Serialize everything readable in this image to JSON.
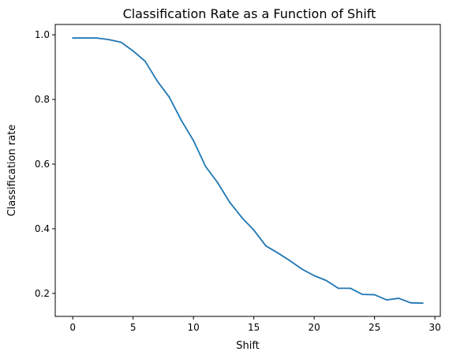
{
  "chart_data": {
    "type": "line",
    "title": "Classification Rate as a Function of Shift",
    "xlabel": "Shift",
    "ylabel": "Classification rate",
    "xlim": [
      -1.45,
      30.45
    ],
    "ylim": [
      0.129,
      1.032
    ],
    "xticks": [
      0,
      5,
      10,
      15,
      20,
      25,
      30
    ],
    "xtick_labels": [
      "0",
      "5",
      "10",
      "15",
      "20",
      "25",
      "30"
    ],
    "yticks": [
      0.2,
      0.4,
      0.6,
      0.8,
      1.0
    ],
    "ytick_labels": [
      "0.2",
      "0.4",
      "0.6",
      "0.8",
      "1.0"
    ],
    "grid": false,
    "line_color": "#1f77b4",
    "series": [
      {
        "x": [
          0,
          1,
          2,
          3,
          4,
          5,
          6,
          7,
          8,
          9,
          10,
          11,
          12,
          13,
          14,
          15,
          16,
          17,
          18,
          19,
          20,
          21,
          22,
          23,
          24,
          25,
          26,
          27,
          28,
          29
        ],
        "values": [
          0.99,
          0.99,
          0.99,
          0.985,
          0.977,
          0.95,
          0.918,
          0.857,
          0.807,
          0.735,
          0.673,
          0.593,
          0.543,
          0.482,
          0.435,
          0.396,
          0.347,
          0.325,
          0.301,
          0.275,
          0.255,
          0.24,
          0.216,
          0.216,
          0.197,
          0.196,
          0.18,
          0.185,
          0.171,
          0.17
        ]
      }
    ]
  }
}
